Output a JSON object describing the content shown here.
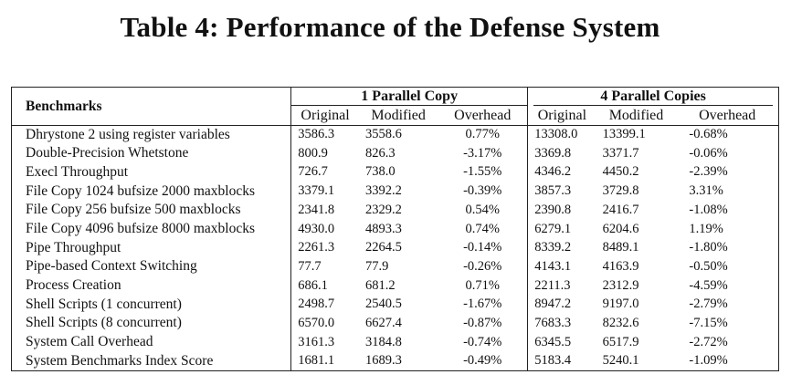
{
  "title": "Table 4: Performance of the Defense System",
  "table": {
    "benchmarks_header": "Benchmarks",
    "group_1": "1 Parallel Copy",
    "group_4": "4 Parallel Copies",
    "sub_headers": [
      "Original",
      "Modified",
      "Overhead"
    ],
    "rows": [
      [
        "Dhrystone 2 using register variables",
        "3586.3",
        "3558.6",
        "0.77%",
        "13308.0",
        "13399.1",
        "-0.68%"
      ],
      [
        "Double-Precision Whetstone",
        "800.9",
        "826.3",
        "-3.17%",
        "3369.8",
        "3371.7",
        "-0.06%"
      ],
      [
        "Execl Throughput",
        "726.7",
        "738.0",
        "-1.55%",
        "4346.2",
        "4450.2",
        "-2.39%"
      ],
      [
        "File Copy 1024 bufsize 2000 maxblocks",
        "3379.1",
        "3392.2",
        "-0.39%",
        "3857.3",
        "3729.8",
        "3.31%"
      ],
      [
        "File Copy 256 bufsize 500 maxblocks",
        "2341.8",
        "2329.2",
        "0.54%",
        "2390.8",
        "2416.7",
        "-1.08%"
      ],
      [
        "File Copy 4096 bufsize 8000 maxblocks",
        "4930.0",
        "4893.3",
        "0.74%",
        "6279.1",
        "6204.6",
        "1.19%"
      ],
      [
        "Pipe Throughput",
        "2261.3",
        "2264.5",
        "-0.14%",
        "8339.2",
        "8489.1",
        "-1.80%"
      ],
      [
        "Pipe-based Context Switching",
        "77.7",
        "77.9",
        "-0.26%",
        "4143.1",
        "4163.9",
        "-0.50%"
      ],
      [
        "Process Creation",
        "686.1",
        "681.2",
        "0.71%",
        "2211.3",
        "2312.9",
        "-4.59%"
      ],
      [
        "Shell Scripts (1 concurrent)",
        "2498.7",
        "2540.5",
        "-1.67%",
        "8947.2",
        "9197.0",
        "-2.79%"
      ],
      [
        "Shell Scripts (8 concurrent)",
        "6570.0",
        "6627.4",
        "-0.87%",
        "7683.3",
        "8232.6",
        "-7.15%"
      ],
      [
        "System Call Overhead",
        "3161.3",
        "3184.8",
        "-0.74%",
        "6345.5",
        "6517.9",
        "-2.72%"
      ],
      [
        "System Benchmarks Index Score",
        "1681.1",
        "1689.3",
        "-0.49%",
        "5183.4",
        "5240.1",
        "-1.09%"
      ]
    ]
  }
}
